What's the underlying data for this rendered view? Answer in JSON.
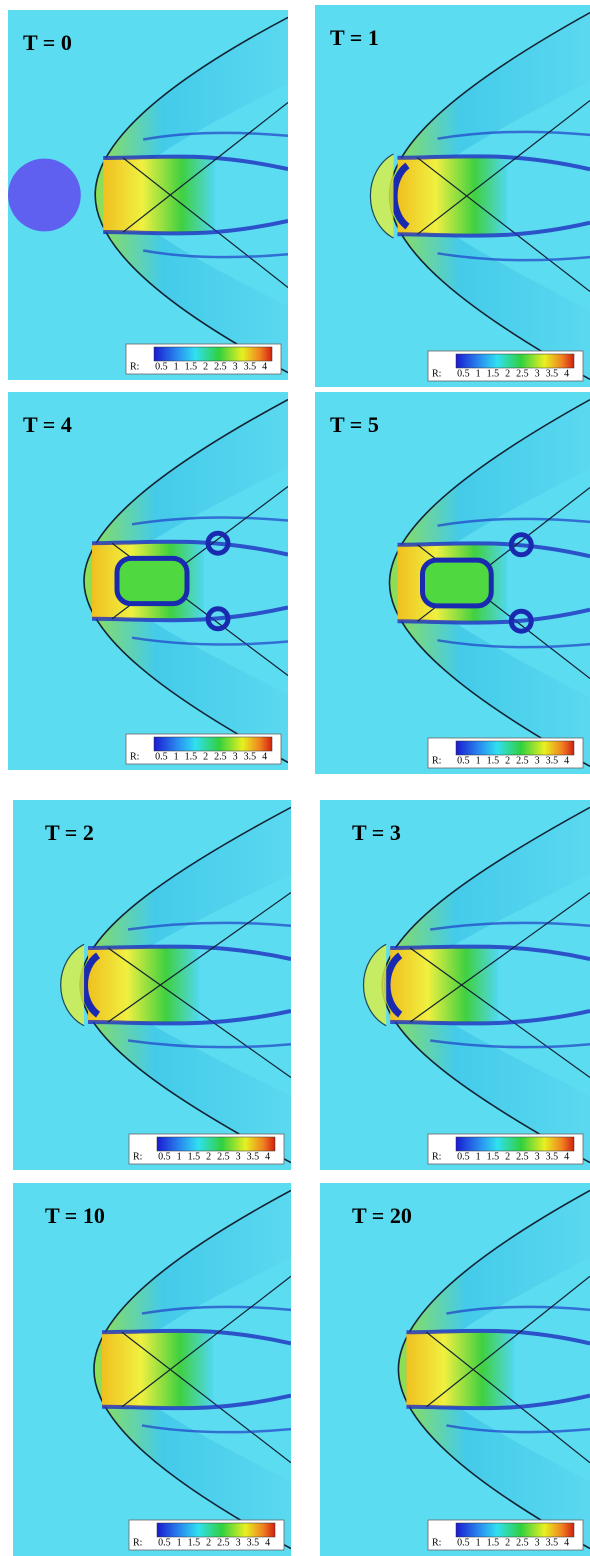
{
  "panels": [
    {
      "label": "T = 0",
      "colorbar": {
        "title": "R:",
        "ticks": [
          0.5,
          1,
          1.5,
          2,
          2.5,
          3,
          3.5,
          4
        ]
      }
    },
    {
      "label": "T = 1",
      "colorbar": {
        "title": "R:",
        "ticks": [
          0.5,
          1,
          1.5,
          2,
          2.5,
          3,
          3.5,
          4
        ]
      }
    },
    {
      "label": "T = 4",
      "colorbar": {
        "title": "R:",
        "ticks": [
          0.5,
          1,
          1.5,
          2,
          2.5,
          3,
          3.5,
          4
        ]
      }
    },
    {
      "label": "T = 5",
      "colorbar": {
        "title": "R:",
        "ticks": [
          0.5,
          1,
          1.5,
          2,
          2.5,
          3,
          3.5,
          4
        ]
      }
    },
    {
      "label": "T = 2",
      "colorbar": {
        "title": "R:",
        "ticks": [
          0.5,
          1,
          1.5,
          2,
          2.5,
          3,
          3.5,
          4
        ]
      }
    },
    {
      "label": "T = 3",
      "colorbar": {
        "title": "R:",
        "ticks": [
          0.5,
          1,
          1.5,
          2,
          2.5,
          3,
          3.5,
          4
        ]
      }
    },
    {
      "label": "T = 10",
      "colorbar": {
        "title": "R:",
        "ticks": [
          0.5,
          1,
          1.5,
          2,
          2.5,
          3,
          3.5,
          4
        ]
      }
    },
    {
      "label": "T = 20",
      "colorbar": {
        "title": "R:",
        "ticks": [
          0.5,
          1,
          1.5,
          2,
          2.5,
          3,
          3.5,
          4
        ]
      }
    }
  ]
}
